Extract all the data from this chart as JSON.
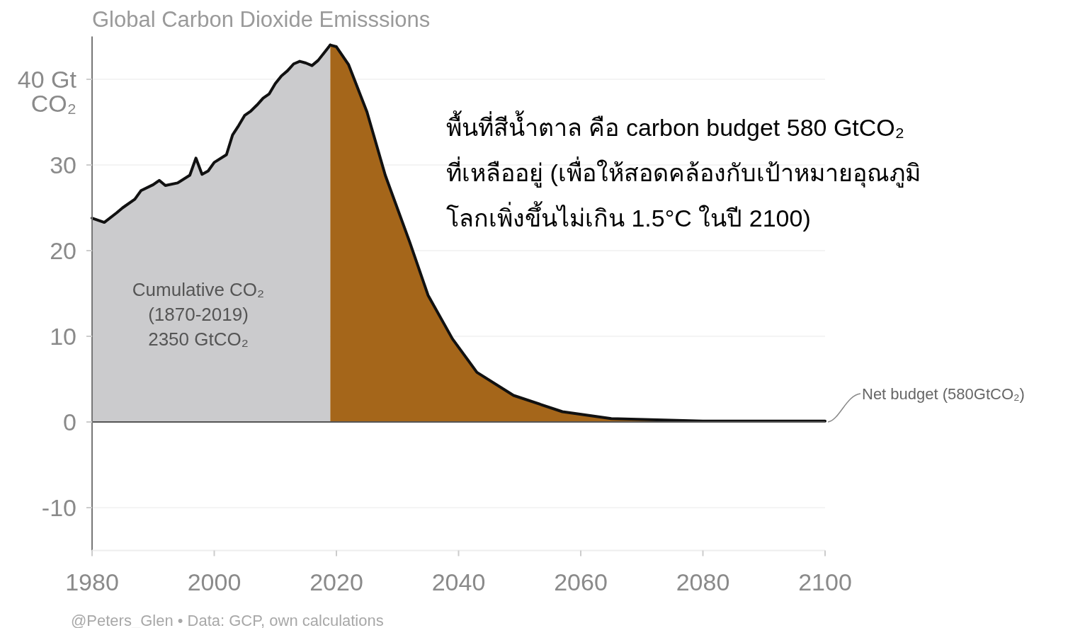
{
  "chart_data": {
    "type": "area",
    "title": "Global Carbon Dioxide Emisssions",
    "xlim": [
      1980,
      2100
    ],
    "xticks": [
      1980,
      2000,
      2020,
      2040,
      2060,
      2080,
      2100
    ],
    "ylim": [
      -15,
      45
    ],
    "yticks": [
      -10,
      0,
      10,
      20,
      30,
      {
        "value": 40,
        "label": "40 Gt\nCO₂"
      }
    ],
    "grid": "y",
    "ref_lines": [
      {
        "axis": "y",
        "value": 0,
        "color": "#555555"
      }
    ],
    "series": [
      {
        "color": "#cbcbcd",
        "x": [
          1980,
          1982,
          1984,
          1985,
          1987,
          1988,
          1990,
          1991,
          1992,
          1994,
          1996,
          1997,
          1998,
          1999,
          2000,
          2002,
          2003,
          2004,
          2005,
          2006,
          2007,
          2008,
          2009,
          2010,
          2011,
          2012,
          2013,
          2014,
          2015,
          2016,
          2017,
          2018,
          2019
        ],
        "values": [
          23.8,
          23.3,
          24.4,
          25.0,
          26.0,
          27.0,
          27.7,
          28.2,
          27.6,
          27.9,
          28.8,
          30.8,
          28.9,
          29.3,
          30.3,
          31.2,
          33.5,
          34.6,
          35.8,
          36.3,
          37.0,
          37.8,
          38.3,
          39.5,
          40.4,
          41.0,
          41.8,
          42.1,
          41.9,
          41.6,
          42.2,
          43.1,
          44.0
        ]
      },
      {
        "color": "#a5661a",
        "x": [
          2019,
          2020,
          2022,
          2025,
          2028,
          2032,
          2035,
          2039,
          2043,
          2049,
          2057,
          2065,
          2080,
          2100
        ],
        "values": [
          44.0,
          43.8,
          41.7,
          36.2,
          28.8,
          21.0,
          14.8,
          9.7,
          5.8,
          3.1,
          1.2,
          0.4,
          0.1,
          0.1
        ]
      }
    ],
    "annotations": [
      "Cumulative CO₂\n(1870-2019)\n2350 GtCO₂",
      "พื้นที่สีน้ำตาล คือ carbon budget 580 GtCO₂\nที่เหลืออยู่ (เพื่อให้สอดคล้องกับเป้าหมายอุณภูมิ\nโลกเพิ่งขึ้นไม่เกิน 1.5°C ในปี 2100)",
      {
        "text": "Net budget (580GtCO₂)",
        "x": 2100,
        "y": 0
      },
      "@Peters_Glen • Data: GCP, own calculations"
    ]
  }
}
